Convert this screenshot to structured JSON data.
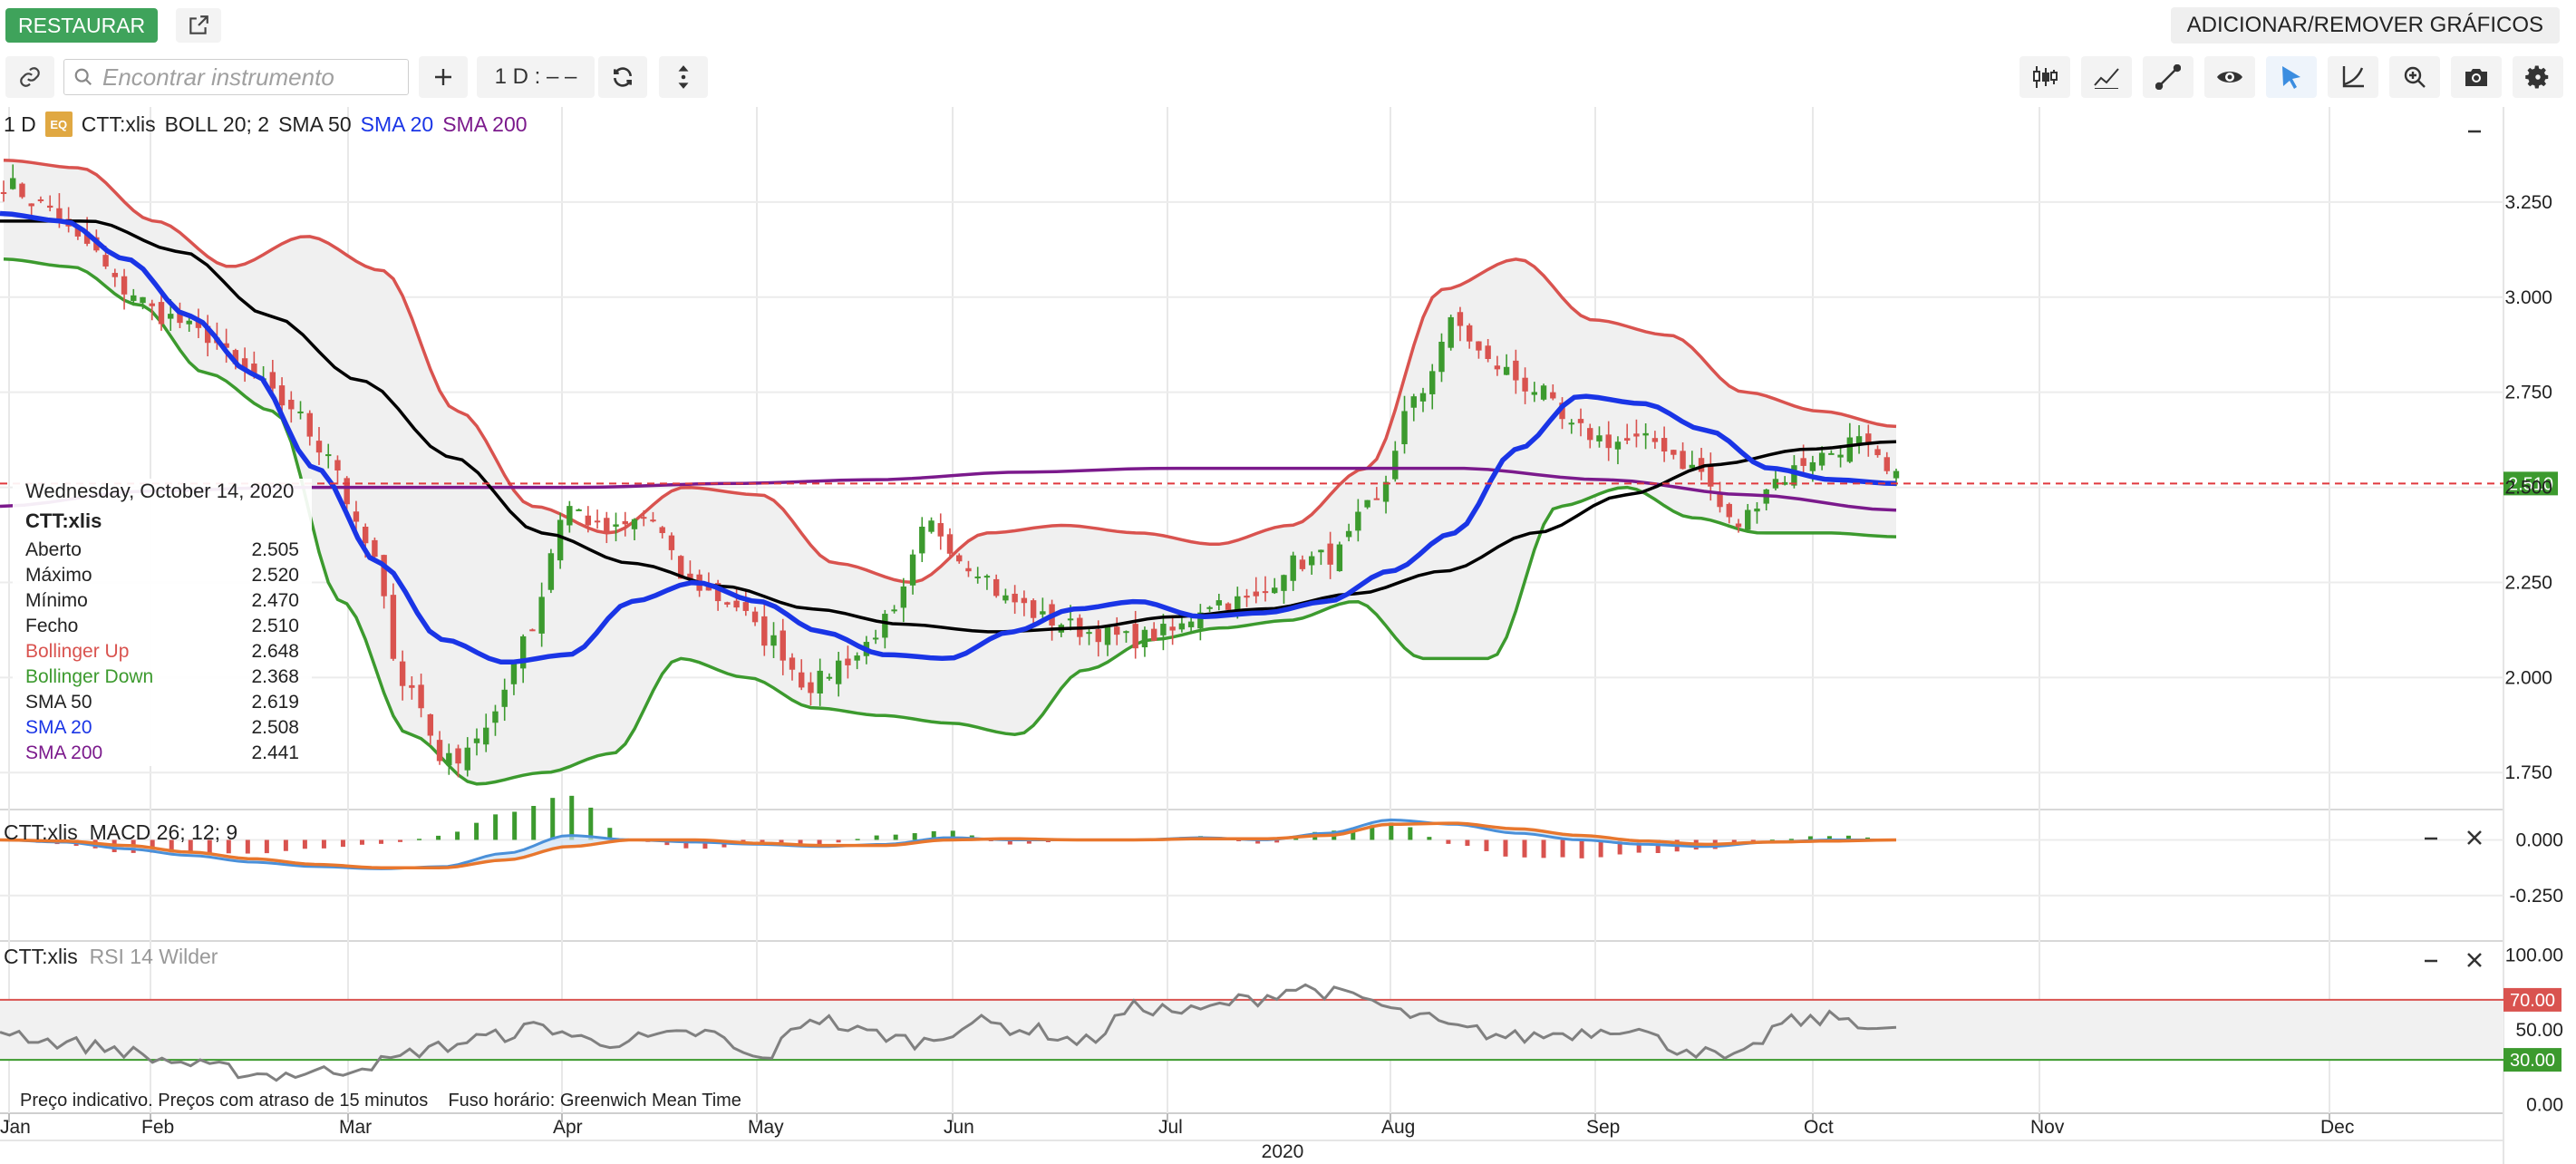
{
  "topbar": {
    "restore_label": "RESTAURAR",
    "add_remove_label": "ADICIONAR/REMOVER GRÁFICOS"
  },
  "toolbar": {
    "search_placeholder": "Encontrar instrumento",
    "interval_label": "1 D : – –",
    "icons": [
      "link-icon",
      "search-icon",
      "plus-icon",
      "refresh-icon",
      "vertical-resize-icon",
      "candles-icon",
      "indicator-icon",
      "draw-line-icon",
      "eye-icon",
      "cursor-icon",
      "curve-icon",
      "zoom-icon",
      "camera-icon",
      "gear-icon"
    ]
  },
  "legend": {
    "interval": "1 D",
    "badge": "EQ",
    "symbol": "CTT:xlis",
    "boll": "BOLL 20; 2",
    "sma50": "SMA 50",
    "sma20": "SMA 20",
    "sma200": "SMA 200"
  },
  "tooltip": {
    "date": "Wednesday, October 14, 2020",
    "symbol": "CTT:xlis",
    "rows": [
      {
        "label": "Aberto",
        "value": "2.505",
        "color": "#222222"
      },
      {
        "label": "Máximo",
        "value": "2.520",
        "color": "#222222"
      },
      {
        "label": "Mínimo",
        "value": "2.470",
        "color": "#222222"
      },
      {
        "label": "Fecho",
        "value": "2.510",
        "color": "#222222"
      },
      {
        "label": "Bollinger Up",
        "value": "2.648",
        "color": "#d9534f"
      },
      {
        "label": "Bollinger Down",
        "value": "2.368",
        "color": "#3c9a2e"
      },
      {
        "label": "SMA 50",
        "value": "2.619",
        "color": "#222222"
      },
      {
        "label": "SMA 20",
        "value": "2.508",
        "color": "#1a35e6"
      },
      {
        "label": "SMA 200",
        "value": "2.441",
        "color": "#7b1a8c"
      }
    ]
  },
  "macd_panel": {
    "symbol": "CTT:xlis",
    "label": "MACD 26; 12; 9"
  },
  "rsi_panel": {
    "symbol": "CTT:xlis",
    "label": "RSI 14 Wilder"
  },
  "footer": {
    "note": "Preço indicativo. Preços com atraso de 15 minutos",
    "timezone": "Fuso horário: Greenwich Mean Time"
  },
  "colors": {
    "bull": "#3c9a2e",
    "bear": "#d9534f",
    "sma20": "#1a35e6",
    "sma50": "#000000",
    "sma200": "#7b1a8c",
    "boll_up": "#d9534f",
    "boll_down": "#3c9a2e",
    "rsi": "#808080",
    "macd": "#4a90d9",
    "signal": "#e8772e",
    "last_price": "#3c9a2e"
  },
  "chart_data": {
    "type": "candlestick",
    "year_label": "2020",
    "months": [
      "Jan",
      "Feb",
      "Mar",
      "Apr",
      "May",
      "Jun",
      "Jul",
      "Aug",
      "Sep",
      "Oct",
      "Nov",
      "Dec"
    ],
    "price_axis": {
      "ticks": [
        "3.250",
        "3.000",
        "2.750",
        "2.500",
        "2.250",
        "2.000",
        "1.750"
      ],
      "tick_values": [
        3.25,
        3.0,
        2.75,
        2.5,
        2.25,
        2.0,
        1.75
      ],
      "ylim": [
        1.66,
        3.5
      ]
    },
    "last_price": {
      "label": "2.510",
      "value": 2.51
    },
    "macd_axis": {
      "ticks": [
        "0.000",
        "-0.250"
      ],
      "tick_values": [
        0.0,
        -0.25
      ],
      "ylim": [
        -0.34,
        0.12
      ]
    },
    "rsi_axis": {
      "ticks": [
        "100.00",
        "50.00",
        "0.00"
      ],
      "tick_values": [
        100,
        50,
        0
      ],
      "ylim": [
        -5,
        105
      ]
    },
    "rsi_levels": [
      {
        "label": "70.00",
        "value": 70
      },
      {
        "label": "30.00",
        "value": 30
      }
    ],
    "close_anchors_by_week": [
      3.3,
      3.24,
      3.14,
      3.02,
      2.95,
      2.9,
      2.8,
      2.72,
      2.6,
      2.35,
      1.98,
      1.78,
      1.86,
      2.12,
      2.45,
      2.38,
      2.42,
      2.25,
      2.2,
      2.1,
      1.98,
      2.05,
      2.15,
      2.4,
      2.3,
      2.2,
      2.15,
      2.12,
      2.1,
      2.12,
      2.2,
      2.2,
      2.3,
      2.32,
      2.45,
      2.72,
      2.93,
      2.82,
      2.76,
      2.65,
      2.62,
      2.62,
      2.55,
      2.4,
      2.52,
      2.58,
      2.62,
      2.52
    ],
    "sma20_anchors": [
      3.22,
      3.2,
      3.1,
      2.95,
      2.8,
      2.55,
      2.3,
      2.1,
      2.04,
      2.06,
      2.2,
      2.25,
      2.2,
      2.12,
      2.06,
      2.05,
      2.12,
      2.18,
      2.2,
      2.16,
      2.17,
      2.2,
      2.28,
      2.38,
      2.6,
      2.74,
      2.72,
      2.65,
      2.55,
      2.52,
      2.51
    ],
    "sma50_anchors": [
      3.2,
      3.2,
      3.12,
      2.95,
      2.78,
      2.58,
      2.38,
      2.3,
      2.24,
      2.18,
      2.14,
      2.12,
      2.13,
      2.16,
      2.18,
      2.22,
      2.28,
      2.38,
      2.48,
      2.56,
      2.6,
      2.62
    ],
    "sma200_anchors": [
      2.45,
      2.49,
      2.5,
      2.5,
      2.5,
      2.51,
      2.52,
      2.54,
      2.55,
      2.55,
      2.55,
      2.52,
      2.48,
      2.44
    ],
    "boll_up_anchors": [
      3.36,
      3.34,
      3.2,
      3.08,
      3.16,
      3.07,
      2.7,
      2.45,
      2.38,
      2.5,
      2.48,
      2.3,
      2.25,
      2.38,
      2.4,
      2.38,
      2.35,
      2.4,
      2.55,
      3.02,
      3.1,
      2.94,
      2.9,
      2.75,
      2.7,
      2.66
    ],
    "boll_down_anchors": [
      3.1,
      3.08,
      2.98,
      2.8,
      2.7,
      2.2,
      1.85,
      1.72,
      1.75,
      1.8,
      2.05,
      2.0,
      1.92,
      1.9,
      1.88,
      1.85,
      2.02,
      2.1,
      2.13,
      2.15,
      2.2,
      2.05,
      2.05,
      2.45,
      2.5,
      2.42,
      2.38,
      2.38,
      2.37
    ],
    "rsi_anchors": [
      50,
      42,
      38,
      30,
      24,
      20,
      22,
      28,
      38,
      45,
      52,
      42,
      44,
      48,
      30,
      58,
      48,
      42,
      55,
      50,
      42,
      65,
      62,
      70,
      78,
      72,
      60,
      50,
      45,
      48,
      52,
      38,
      30,
      55,
      58,
      48
    ]
  }
}
